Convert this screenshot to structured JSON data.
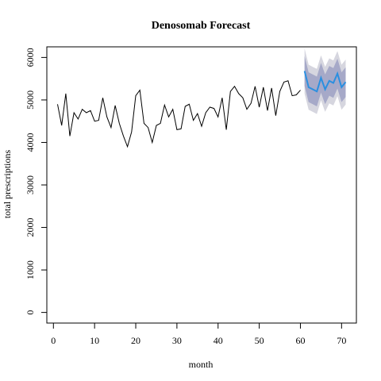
{
  "chart_data": {
    "type": "line",
    "title": "Denosomab Forecast",
    "xlabel": "month",
    "ylabel": "total prescriptions",
    "xlim": [
      -1.6,
      73.6
    ],
    "ylim": [
      -250,
      6250
    ],
    "x_ticks": [
      0,
      10,
      20,
      30,
      40,
      50,
      60,
      70
    ],
    "y_ticks": [
      0,
      1000,
      2000,
      3000,
      4000,
      5000,
      6000
    ],
    "grid": false,
    "legend": "none",
    "colors": {
      "history": "#000000",
      "forecast": "#2b8fe0",
      "band_95": "#d6d6df",
      "band_80": "#a6a9c8"
    },
    "series": [
      {
        "x": [
          1,
          2,
          3,
          4,
          5,
          6,
          7,
          8,
          9,
          10,
          11,
          12,
          13,
          14,
          15,
          16,
          17,
          18,
          19,
          20,
          21,
          22,
          23,
          24,
          25,
          26,
          27,
          28,
          29,
          30,
          31,
          32,
          33,
          34,
          35,
          36,
          37,
          38,
          39,
          40,
          41,
          42,
          43,
          44,
          45,
          46,
          47,
          48,
          49,
          50,
          51,
          52,
          53,
          54,
          55,
          56,
          57,
          58,
          59,
          60
        ],
        "values": [
          4900,
          4400,
          5150,
          4150,
          4700,
          4550,
          4780,
          4700,
          4750,
          4500,
          4520,
          5050,
          4600,
          4350,
          4870,
          4450,
          4150,
          3900,
          4250,
          5100,
          5230,
          4450,
          4350,
          4000,
          4400,
          4450,
          4880,
          4600,
          4780,
          4300,
          4320,
          4850,
          4900,
          4520,
          4680,
          4380,
          4700,
          4830,
          4800,
          4600,
          5050,
          4300,
          5200,
          5320,
          5150,
          5050,
          4780,
          4920,
          5320,
          4830,
          5300,
          4750,
          5280,
          4630,
          5200,
          5420,
          5450,
          5100,
          5120,
          5230
        ]
      },
      {
        "x": [
          61,
          62,
          63,
          64,
          65,
          66,
          67,
          68,
          69,
          70,
          71
        ],
        "values": [
          5680,
          5300,
          5250,
          5200,
          5520,
          5250,
          5450,
          5400,
          5620,
          5300,
          5420
        ],
        "lower_80": [
          5330,
          4950,
          4900,
          4850,
          5170,
          4900,
          5100,
          5050,
          5270,
          4950,
          5070
        ],
        "upper_80": [
          6030,
          5650,
          5600,
          5550,
          5870,
          5600,
          5800,
          5750,
          5970,
          5650,
          5770
        ],
        "lower_95": [
          5150,
          4770,
          4720,
          4670,
          4990,
          4720,
          4920,
          4870,
          5090,
          4770,
          4890
        ],
        "upper_95": [
          6210,
          5830,
          5780,
          5730,
          6050,
          5780,
          5980,
          5930,
          6150,
          5830,
          5950
        ]
      }
    ]
  }
}
